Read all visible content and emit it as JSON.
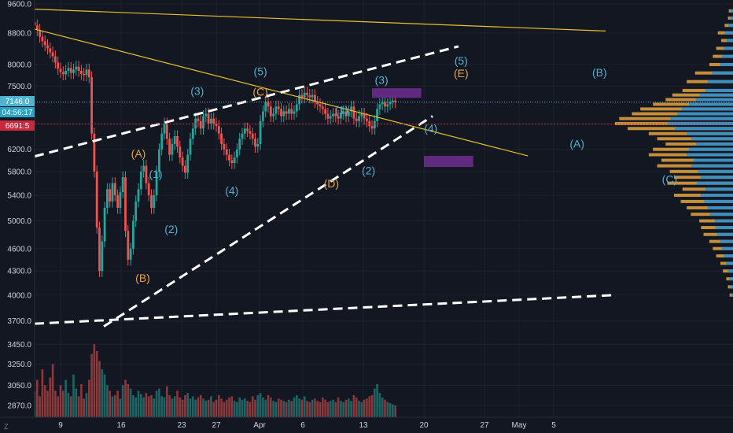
{
  "chart_data": {
    "type": "candlestick",
    "title": "",
    "xlabel": "",
    "ylabel": "",
    "ylim": [
      2770,
      9600
    ],
    "price_scale": "log",
    "grid": true,
    "y_ticks": [
      9600.0,
      8800.0,
      8000.0,
      7500.0,
      6200.0,
      5800.0,
      5400.0,
      5000.0,
      4600.0,
      4300.0,
      4000.0,
      3700.0,
      3450.0,
      3250.0,
      3050.0,
      2870.0
    ],
    "x_ticks": [
      {
        "label": "9",
        "day": 9
      },
      {
        "label": "16",
        "day": 16
      },
      {
        "label": "23",
        "day": 23
      },
      {
        "label": "27",
        "day": 27
      },
      {
        "label": "Apr",
        "day": 32
      },
      {
        "label": "6",
        "day": 37
      },
      {
        "label": "13",
        "day": 44
      },
      {
        "label": "20",
        "day": 51
      },
      {
        "label": "27",
        "day": 58
      },
      {
        "label": "May",
        "day": 62
      },
      {
        "label": "5",
        "day": 66
      }
    ],
    "last_price": "7146.0",
    "countdown": "04:56:17",
    "marked_price": "6691.5",
    "series_close": [
      [
        6.0,
        9000
      ],
      [
        6.3,
        8880
      ],
      [
        6.6,
        8700
      ],
      [
        6.9,
        8580
      ],
      [
        7.2,
        8480
      ],
      [
        7.5,
        8400
      ],
      [
        7.8,
        8300
      ],
      [
        8.1,
        8200
      ],
      [
        8.4,
        8050
      ],
      [
        8.7,
        7900
      ],
      [
        9.0,
        7820
      ],
      [
        9.3,
        7770
      ],
      [
        9.6,
        7850
      ],
      [
        9.9,
        7920
      ],
      [
        10.2,
        7800
      ],
      [
        10.5,
        7880
      ],
      [
        10.8,
        7950
      ],
      [
        11.1,
        7850
      ],
      [
        11.4,
        7780
      ],
      [
        11.7,
        7750
      ],
      [
        12.0,
        7880
      ],
      [
        12.3,
        7700
      ],
      [
        12.6,
        6500
      ],
      [
        12.9,
        5800
      ],
      [
        13.2,
        4900
      ],
      [
        13.5,
        4300
      ],
      [
        13.8,
        4700
      ],
      [
        14.1,
        5200
      ],
      [
        14.4,
        5500
      ],
      [
        14.7,
        5300
      ],
      [
        15.0,
        5600
      ],
      [
        15.3,
        5400
      ],
      [
        15.6,
        5200
      ],
      [
        15.9,
        5450
      ],
      [
        16.2,
        5700
      ],
      [
        16.5,
        4850
      ],
      [
        16.8,
        4450
      ],
      [
        17.1,
        4600
      ],
      [
        17.4,
        5000
      ],
      [
        17.7,
        5300
      ],
      [
        18.0,
        5500
      ],
      [
        18.3,
        5800
      ],
      [
        18.6,
        5900
      ],
      [
        18.9,
        5600
      ],
      [
        19.2,
        5400
      ],
      [
        19.5,
        5200
      ],
      [
        19.8,
        5400
      ],
      [
        20.1,
        5800
      ],
      [
        20.4,
        6200
      ],
      [
        20.7,
        6500
      ],
      [
        21.0,
        6700
      ],
      [
        21.3,
        6400
      ],
      [
        21.6,
        6100
      ],
      [
        21.9,
        6300
      ],
      [
        22.2,
        6450
      ],
      [
        22.5,
        6250
      ],
      [
        22.8,
        6050
      ],
      [
        23.1,
        5900
      ],
      [
        23.4,
        5780
      ],
      [
        23.7,
        6100
      ],
      [
        24.0,
        6400
      ],
      [
        24.3,
        6600
      ],
      [
        24.6,
        6800
      ],
      [
        24.9,
        6750
      ],
      [
        25.2,
        6600
      ],
      [
        25.5,
        6850
      ],
      [
        25.8,
        6900
      ],
      [
        26.1,
        6700
      ],
      [
        26.4,
        6800
      ],
      [
        26.7,
        6700
      ],
      [
        27.0,
        6650
      ],
      [
        27.3,
        6500
      ],
      [
        27.6,
        6300
      ],
      [
        27.9,
        6200
      ],
      [
        28.2,
        6100
      ],
      [
        28.5,
        6000
      ],
      [
        28.8,
        5950
      ],
      [
        29.1,
        6050
      ],
      [
        29.4,
        6200
      ],
      [
        29.7,
        6400
      ],
      [
        30.0,
        6500
      ],
      [
        30.3,
        6600
      ],
      [
        30.6,
        6550
      ],
      [
        30.9,
        6500
      ],
      [
        31.2,
        6400
      ],
      [
        31.5,
        6250
      ],
      [
        31.8,
        6300
      ],
      [
        32.1,
        6750
      ],
      [
        32.4,
        6950
      ],
      [
        32.7,
        7150
      ],
      [
        33.0,
        7050
      ],
      [
        33.3,
        6850
      ],
      [
        33.6,
        6900
      ],
      [
        33.9,
        7050
      ],
      [
        34.2,
        7000
      ],
      [
        34.5,
        6850
      ],
      [
        34.8,
        6950
      ],
      [
        35.1,
        6900
      ],
      [
        35.4,
        7000
      ],
      [
        35.7,
        6900
      ],
      [
        36.0,
        6950
      ],
      [
        36.3,
        7100
      ],
      [
        36.6,
        7300
      ],
      [
        36.9,
        7250
      ],
      [
        37.2,
        7350
      ],
      [
        37.5,
        7300
      ],
      [
        37.8,
        7250
      ],
      [
        38.1,
        7300
      ],
      [
        38.4,
        7150
      ],
      [
        38.7,
        7100
      ],
      [
        39.0,
        7050
      ],
      [
        39.3,
        7000
      ],
      [
        39.6,
        6900
      ],
      [
        39.9,
        6800
      ],
      [
        40.2,
        6850
      ],
      [
        40.5,
        6900
      ],
      [
        40.8,
        6850
      ],
      [
        41.1,
        6800
      ],
      [
        41.4,
        6900
      ],
      [
        41.7,
        6950
      ],
      [
        42.0,
        6850
      ],
      [
        42.3,
        6950
      ],
      [
        42.6,
        7050
      ],
      [
        42.9,
        6800
      ],
      [
        43.2,
        6750
      ],
      [
        43.5,
        6850
      ],
      [
        43.8,
        6900
      ],
      [
        44.1,
        6800
      ],
      [
        44.4,
        6750
      ],
      [
        44.7,
        6650
      ],
      [
        45.0,
        6600
      ],
      [
        45.3,
        6750
      ],
      [
        45.6,
        7000
      ],
      [
        45.9,
        7100
      ],
      [
        46.2,
        7150
      ],
      [
        46.5,
        7050
      ],
      [
        46.8,
        7100
      ],
      [
        47.1,
        7150
      ],
      [
        47.4,
        7180
      ],
      [
        47.7,
        7146
      ]
    ],
    "volume": [
      [
        6.0,
        3000
      ],
      [
        6.3,
        3100
      ],
      [
        6.6,
        2950
      ],
      [
        6.9,
        3200
      ],
      [
        7.2,
        3050
      ],
      [
        7.5,
        3000
      ],
      [
        7.8,
        3120
      ],
      [
        8.1,
        3250
      ],
      [
        8.4,
        3000
      ],
      [
        8.7,
        2950
      ],
      [
        9.0,
        3050
      ],
      [
        9.3,
        3000
      ],
      [
        9.6,
        3100
      ],
      [
        9.9,
        2980
      ],
      [
        10.2,
        2950
      ],
      [
        10.5,
        3150
      ],
      [
        10.8,
        3020
      ],
      [
        11.1,
        2950
      ],
      [
        11.4,
        3060
      ],
      [
        11.7,
        2930
      ],
      [
        12.0,
        2980
      ],
      [
        12.3,
        3100
      ],
      [
        12.6,
        3350
      ],
      [
        12.9,
        3450
      ],
      [
        13.2,
        3380
      ],
      [
        13.5,
        3280
      ],
      [
        13.8,
        3200
      ],
      [
        14.1,
        3150
      ],
      [
        14.4,
        3050
      ],
      [
        14.7,
        3000
      ],
      [
        15.0,
        2950
      ],
      [
        15.3,
        2960
      ],
      [
        15.6,
        3000
      ],
      [
        15.9,
        2930
      ],
      [
        16.2,
        3050
      ],
      [
        16.5,
        3100
      ],
      [
        16.8,
        3060
      ],
      [
        17.1,
        3020
      ],
      [
        17.4,
        2960
      ],
      [
        17.7,
        2940
      ],
      [
        18.0,
        3000
      ],
      [
        18.3,
        2970
      ],
      [
        18.6,
        2940
      ],
      [
        18.9,
        2980
      ],
      [
        19.2,
        2950
      ],
      [
        19.5,
        2960
      ],
      [
        19.8,
        2930
      ],
      [
        20.1,
        3000
      ],
      [
        20.4,
        3020
      ],
      [
        20.7,
        2950
      ],
      [
        21.0,
        2940
      ],
      [
        21.3,
        3040
      ],
      [
        21.6,
        2960
      ],
      [
        21.9,
        2930
      ],
      [
        22.2,
        2950
      ],
      [
        22.5,
        3000
      ],
      [
        22.8,
        2940
      ],
      [
        23.1,
        2920
      ],
      [
        23.4,
        2960
      ],
      [
        23.7,
        2980
      ],
      [
        24.0,
        2930
      ],
      [
        24.3,
        2950
      ],
      [
        24.6,
        2920
      ],
      [
        24.9,
        2940
      ],
      [
        25.2,
        2960
      ],
      [
        25.5,
        2930
      ],
      [
        25.8,
        2910
      ],
      [
        26.1,
        2920
      ],
      [
        26.4,
        2950
      ],
      [
        26.7,
        2900
      ],
      [
        27.0,
        2920
      ],
      [
        27.3,
        2960
      ],
      [
        27.6,
        2930
      ],
      [
        27.9,
        2900
      ],
      [
        28.2,
        2920
      ],
      [
        28.5,
        2940
      ],
      [
        28.8,
        2950
      ],
      [
        29.1,
        2910
      ],
      [
        29.4,
        2900
      ],
      [
        29.7,
        2940
      ],
      [
        30.0,
        2920
      ],
      [
        30.3,
        2930
      ],
      [
        30.6,
        2910
      ],
      [
        30.9,
        2900
      ],
      [
        31.2,
        2950
      ],
      [
        31.5,
        2920
      ],
      [
        31.8,
        2960
      ],
      [
        32.1,
        2980
      ],
      [
        32.4,
        2940
      ],
      [
        32.7,
        2920
      ],
      [
        33.0,
        2960
      ],
      [
        33.3,
        2940
      ],
      [
        33.6,
        2910
      ],
      [
        33.9,
        2900
      ],
      [
        34.2,
        2930
      ],
      [
        34.5,
        2920
      ],
      [
        34.8,
        2910
      ],
      [
        35.1,
        2900
      ],
      [
        35.4,
        2920
      ],
      [
        35.7,
        2910
      ],
      [
        36.0,
        2940
      ],
      [
        36.3,
        2960
      ],
      [
        36.6,
        2930
      ],
      [
        36.9,
        2920
      ],
      [
        37.2,
        2950
      ],
      [
        37.5,
        2910
      ],
      [
        37.8,
        2900
      ],
      [
        38.1,
        2920
      ],
      [
        38.4,
        2930
      ],
      [
        38.7,
        2910
      ],
      [
        39.0,
        2900
      ],
      [
        39.3,
        2940
      ],
      [
        39.6,
        2920
      ],
      [
        39.9,
        2900
      ],
      [
        40.2,
        2910
      ],
      [
        40.5,
        2920
      ],
      [
        40.8,
        2900
      ],
      [
        41.1,
        2940
      ],
      [
        41.4,
        2910
      ],
      [
        41.7,
        2900
      ],
      [
        42.0,
        2920
      ],
      [
        42.3,
        2930
      ],
      [
        42.6,
        2910
      ],
      [
        42.9,
        2960
      ],
      [
        43.2,
        2940
      ],
      [
        43.5,
        2910
      ],
      [
        43.8,
        2900
      ],
      [
        44.1,
        2920
      ],
      [
        44.4,
        2930
      ],
      [
        44.7,
        2950
      ],
      [
        45.0,
        2960
      ],
      [
        45.3,
        3020
      ],
      [
        45.6,
        3060
      ],
      [
        45.9,
        2980
      ],
      [
        46.2,
        2940
      ],
      [
        46.5,
        2920
      ],
      [
        46.8,
        2900
      ],
      [
        47.1,
        2890
      ],
      [
        47.4,
        2880
      ],
      [
        47.7,
        2870
      ]
    ],
    "volume_profile": [
      [
        9400,
        5
      ],
      [
        9200,
        6
      ],
      [
        9000,
        10
      ],
      [
        8800,
        18
      ],
      [
        8600,
        14
      ],
      [
        8400,
        20
      ],
      [
        8200,
        24
      ],
      [
        8000,
        28
      ],
      [
        7800,
        45
      ],
      [
        7600,
        55
      ],
      [
        7400,
        60
      ],
      [
        7300,
        72
      ],
      [
        7200,
        80
      ],
      [
        7100,
        95
      ],
      [
        7000,
        110
      ],
      [
        6900,
        120
      ],
      [
        6800,
        135
      ],
      [
        6700,
        140
      ],
      [
        6600,
        125
      ],
      [
        6500,
        100
      ],
      [
        6400,
        90
      ],
      [
        6300,
        80
      ],
      [
        6200,
        95
      ],
      [
        6100,
        100
      ],
      [
        6000,
        85
      ],
      [
        5900,
        90
      ],
      [
        5800,
        75
      ],
      [
        5700,
        70
      ],
      [
        5600,
        78
      ],
      [
        5500,
        60
      ],
      [
        5400,
        70
      ],
      [
        5300,
        62
      ],
      [
        5200,
        55
      ],
      [
        5100,
        50
      ],
      [
        5000,
        40
      ],
      [
        4900,
        38
      ],
      [
        4800,
        35
      ],
      [
        4700,
        28
      ],
      [
        4600,
        24
      ],
      [
        4500,
        20
      ],
      [
        4400,
        15
      ],
      [
        4300,
        12
      ],
      [
        4200,
        8
      ],
      [
        4100,
        6
      ],
      [
        4000,
        4
      ]
    ],
    "trend_lines": [
      {
        "style": "solid",
        "color": "#e6c229",
        "points": [
          [
            6.0,
            9450
          ],
          [
            72.0,
            8850
          ]
        ]
      },
      {
        "style": "solid",
        "color": "#e6c229",
        "points": [
          [
            6.0,
            8900
          ],
          [
            63.0,
            6080
          ]
        ]
      },
      {
        "style": "dashed",
        "color": "#ffffff",
        "points": [
          [
            6.0,
            6070
          ],
          [
            55.0,
            8450
          ]
        ]
      },
      {
        "style": "dashed",
        "color": "#ffffff",
        "points": [
          [
            14.0,
            3640
          ],
          [
            52.0,
            6850
          ]
        ]
      },
      {
        "style": "dashed",
        "color": "#ffffff",
        "points": [
          [
            6.0,
            3670
          ],
          [
            73.0,
            4000
          ]
        ]
      }
    ],
    "boxes": [
      {
        "color": "#6a2c8c",
        "x0": 45.0,
        "x1": 50.7,
        "y0": 7240,
        "y1": 7450
      },
      {
        "color": "#6a2c8c",
        "x0": 51.0,
        "x1": 56.7,
        "y0": 5880,
        "y1": 6080
      }
    ],
    "wave_labels": [
      {
        "text": "(A)",
        "color": "orange",
        "x": 18.0,
        "y": 6050
      },
      {
        "text": "(1)",
        "color": "blue",
        "x": 20.0,
        "y": 5690
      },
      {
        "text": "(B)",
        "color": "orange",
        "x": 18.5,
        "y": 4160
      },
      {
        "text": "(2)",
        "color": "blue",
        "x": 21.8,
        "y": 4820
      },
      {
        "text": "(3)",
        "color": "blue",
        "x": 24.8,
        "y": 7300
      },
      {
        "text": "(4)",
        "color": "blue",
        "x": 28.8,
        "y": 5410
      },
      {
        "text": "(5)",
        "color": "blue",
        "x": 32.1,
        "y": 7750
      },
      {
        "text": "(C)",
        "color": "orange",
        "x": 32.1,
        "y": 7290
      },
      {
        "text": "(1)",
        "color": "blue",
        "x": 41.5,
        "y": 6900
      },
      {
        "text": "(D)",
        "color": "orange",
        "x": 40.3,
        "y": 5530
      },
      {
        "text": "(2)",
        "color": "blue",
        "x": 44.6,
        "y": 5750
      },
      {
        "text": "(3)",
        "color": "blue",
        "x": 46.1,
        "y": 7550
      },
      {
        "text": "(4)",
        "color": "blue",
        "x": 51.8,
        "y": 6530
      },
      {
        "text": "(5)",
        "color": "blue",
        "x": 55.3,
        "y": 8000
      },
      {
        "text": "(E)",
        "color": "orange",
        "x": 55.3,
        "y": 7700
      },
      {
        "text": "(B)",
        "color": "blue",
        "x": 71.3,
        "y": 7720
      },
      {
        "text": "(A)",
        "color": "blue",
        "x": 68.7,
        "y": 6230
      },
      {
        "text": "(C)",
        "color": "blue",
        "x": 79.4,
        "y": 5600
      }
    ]
  },
  "axis_corner_label": "Z"
}
